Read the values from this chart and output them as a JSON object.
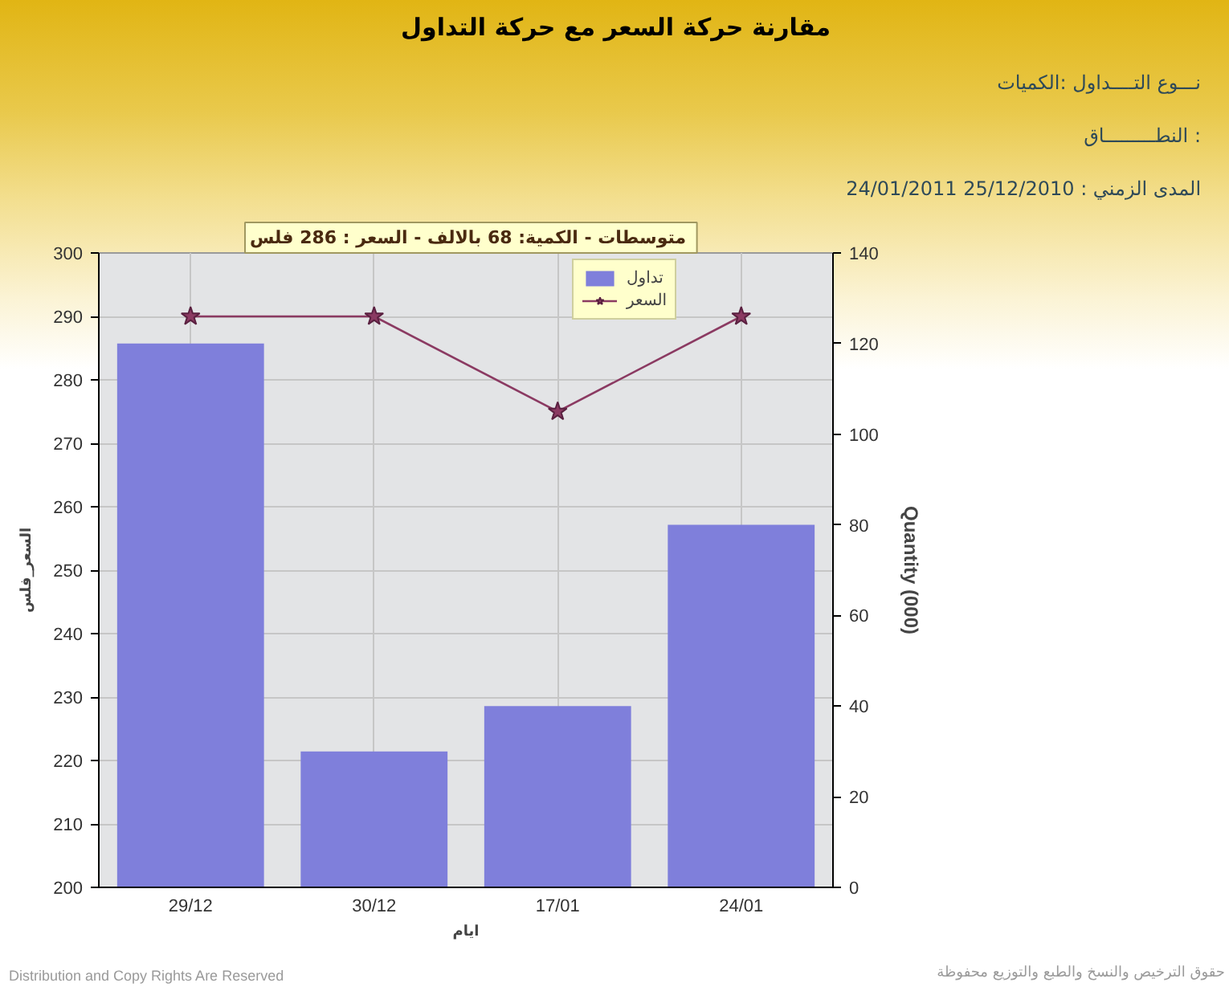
{
  "chart_data": {
    "type": "bar",
    "title": "مقارنة حركة السعر مع حركة التداول",
    "xlabel": "ايام",
    "ylabel": "السعر_فلس",
    "y2label": "Quantity (000)",
    "categories": [
      "29/12",
      "30/12",
      "17/01",
      "24/01"
    ],
    "series": [
      {
        "name": "تداول",
        "axis": "y2",
        "color": "#7f7fdb",
        "values": [
          120,
          30,
          40,
          80
        ]
      },
      {
        "name": "السعر",
        "type": "line",
        "color": "#8b3a62",
        "marker": "star",
        "values": [
          290,
          290,
          275,
          290
        ]
      }
    ],
    "ylim": [
      200,
      300
    ],
    "yticks": [
      200,
      210,
      220,
      230,
      240,
      250,
      260,
      270,
      280,
      290,
      300
    ],
    "y2lim": [
      0,
      140
    ],
    "y2ticks": [
      0,
      20,
      40,
      60,
      80,
      100,
      120,
      140
    ],
    "grid": true,
    "legend": "top right",
    "annotations": [
      "متوسطات - الكمية: 68 بالالف  - السعر : 286 فلس",
      "نـــوع التــــداول :الكميات",
      "النطـــــــــاق :",
      "المدى الزمني : 25/12/2010 24/01/2011",
      "Distribution and Copy Rights Are Reserved",
      "حقوق الترخيص والنسخ والطبع والتوزيع محفوظة"
    ]
  }
}
